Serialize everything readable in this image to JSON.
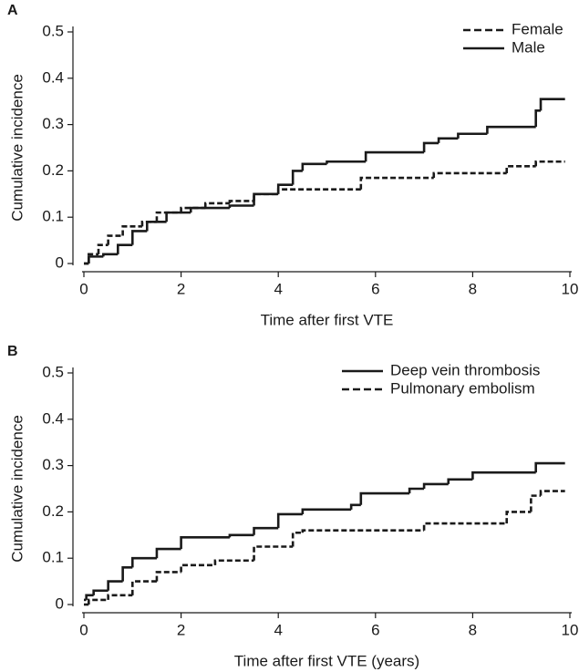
{
  "chart_data": [
    {
      "type": "line",
      "label": "A",
      "step": true,
      "legend": "upper right",
      "xlabel": "Time after first VTE",
      "ylabel": "Cumulative incidence",
      "xlim": [
        0,
        10
      ],
      "xticks": [
        0,
        2,
        4,
        6,
        8,
        10
      ],
      "ylim": [
        0,
        0.5
      ],
      "yticks": [
        0,
        0.1,
        0.2,
        0.3,
        0.4,
        0.5
      ],
      "series": [
        {
          "name": "Female",
          "color": "#1a1a1a",
          "dashed": true,
          "x": [
            0,
            0.1,
            0.3,
            0.5,
            0.8,
            1.2,
            1.5,
            2,
            2.5,
            3,
            3.5,
            4,
            5.7,
            7.2,
            8.7,
            9.3,
            9.9
          ],
          "values": [
            0,
            0.02,
            0.04,
            0.06,
            0.08,
            0.09,
            0.11,
            0.12,
            0.13,
            0.135,
            0.15,
            0.16,
            0.185,
            0.195,
            0.21,
            0.22,
            0.22
          ]
        },
        {
          "name": "Male",
          "color": "#1a1a1a",
          "dashed": false,
          "x": [
            0,
            0.1,
            0.4,
            0.7,
            1,
            1.3,
            1.7,
            2.2,
            3,
            3.5,
            4,
            4.3,
            4.5,
            5,
            5.8,
            7,
            7.3,
            7.7,
            8.3,
            9.3,
            9.4,
            9.9
          ],
          "values": [
            0,
            0.015,
            0.02,
            0.04,
            0.07,
            0.09,
            0.11,
            0.12,
            0.125,
            0.15,
            0.17,
            0.2,
            0.215,
            0.22,
            0.24,
            0.26,
            0.27,
            0.28,
            0.295,
            0.33,
            0.355,
            0.355
          ]
        }
      ]
    },
    {
      "type": "line",
      "label": "B",
      "step": true,
      "legend": "upper right",
      "xlabel": "Time after first VTE (years)",
      "ylabel": "Cumulative incidence",
      "xlim": [
        0,
        10
      ],
      "xticks": [
        0,
        2,
        4,
        6,
        8,
        10
      ],
      "ylim": [
        0,
        0.5
      ],
      "yticks": [
        0,
        0.1,
        0.2,
        0.3,
        0.4,
        0.5
      ],
      "series": [
        {
          "name": "Deep vein thrombosis",
          "color": "#1a1a1a",
          "dashed": false,
          "x": [
            0,
            0.05,
            0.2,
            0.5,
            0.8,
            1,
            1.5,
            2,
            3,
            3.5,
            4,
            4.5,
            5.5,
            5.7,
            6.7,
            7,
            7.5,
            8,
            9.3,
            9.9
          ],
          "values": [
            0.01,
            0.02,
            0.03,
            0.05,
            0.08,
            0.1,
            0.12,
            0.145,
            0.15,
            0.165,
            0.195,
            0.205,
            0.215,
            0.24,
            0.25,
            0.26,
            0.27,
            0.285,
            0.305,
            0.305
          ]
        },
        {
          "name": "Pulmonary embolism",
          "color": "#1a1a1a",
          "dashed": true,
          "x": [
            0,
            0.1,
            0.5,
            1,
            1.5,
            2,
            2.7,
            3.5,
            4.3,
            4.5,
            7,
            8.7,
            9.2,
            9.4,
            9.9
          ],
          "values": [
            0,
            0.01,
            0.02,
            0.05,
            0.07,
            0.085,
            0.095,
            0.125,
            0.155,
            0.16,
            0.175,
            0.2,
            0.235,
            0.245,
            0.245
          ]
        }
      ]
    }
  ]
}
